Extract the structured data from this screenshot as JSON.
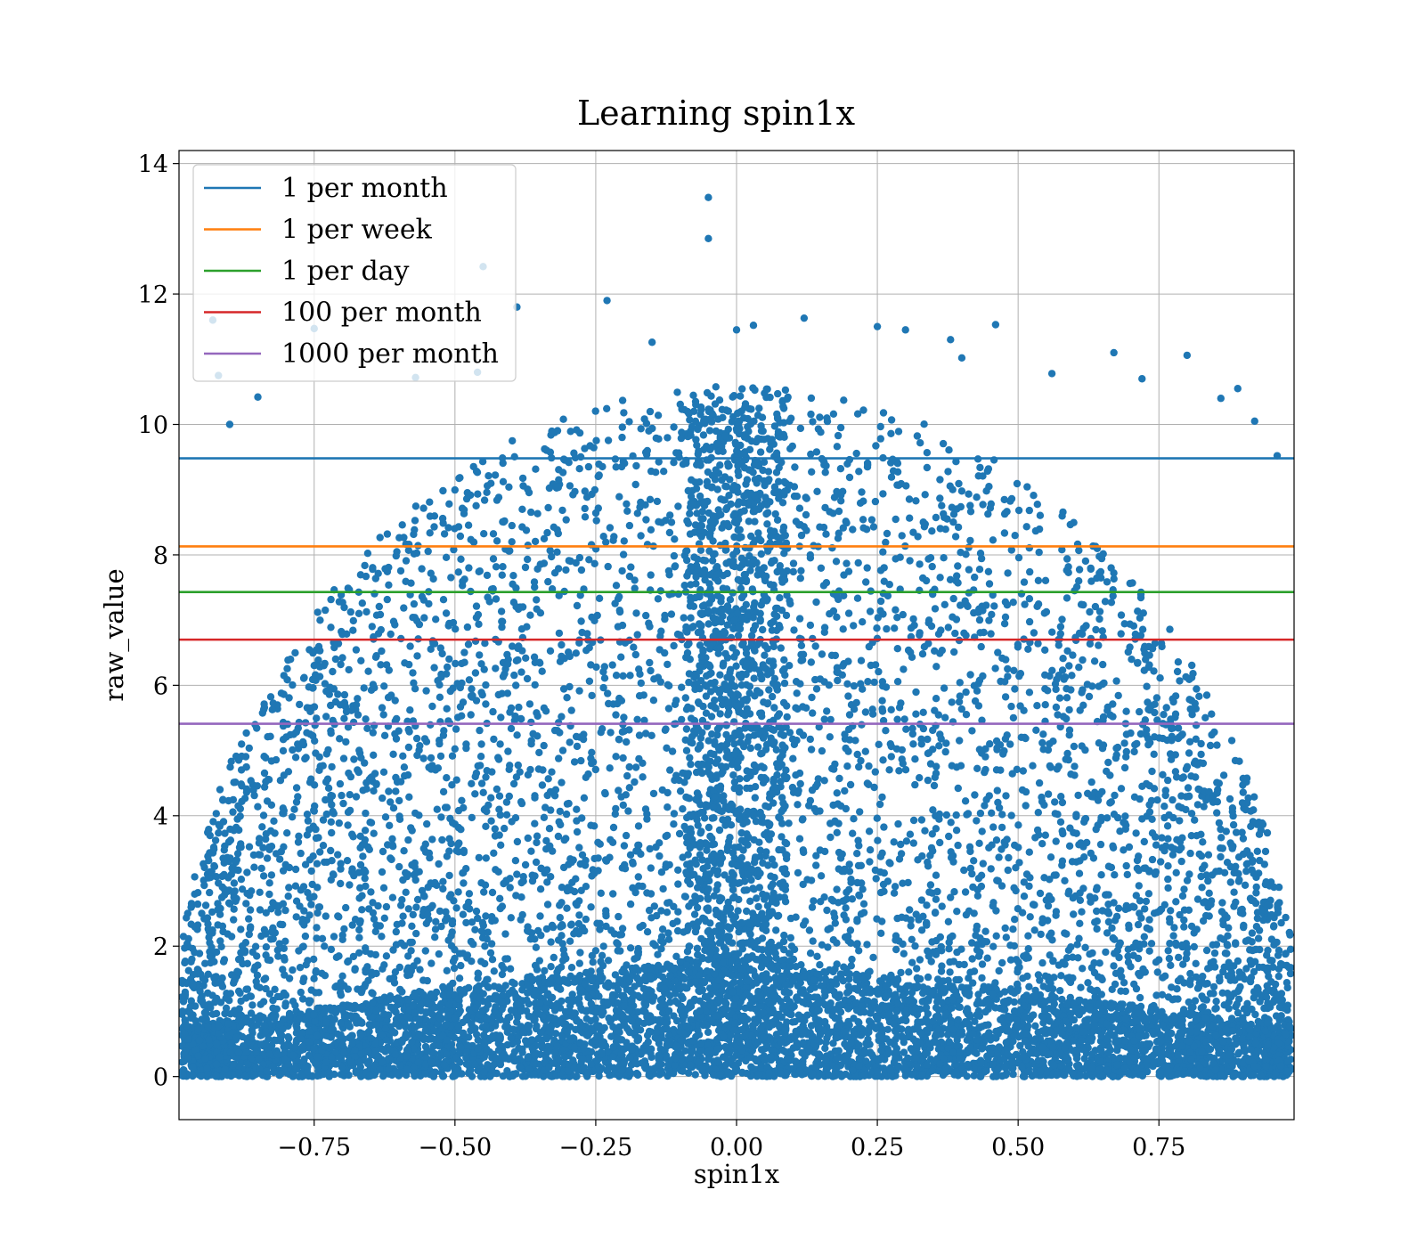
{
  "chart_data": {
    "type": "scatter",
    "title": "Learning spin1x",
    "xlabel": "spin1x",
    "ylabel": "raw_value",
    "xlim": [
      -0.99,
      0.99
    ],
    "ylim": [
      -0.66,
      14.2
    ],
    "xticks": [
      -0.75,
      -0.5,
      -0.25,
      0.0,
      0.25,
      0.5,
      0.75
    ],
    "xtick_labels": [
      "−0.75",
      "−0.50",
      "−0.25",
      "0.00",
      "0.25",
      "0.50",
      "0.75"
    ],
    "yticks": [
      0,
      2,
      4,
      6,
      8,
      10,
      12,
      14
    ],
    "ytick_labels": [
      "0",
      "2",
      "4",
      "6",
      "8",
      "10",
      "12",
      "14"
    ],
    "grid": true,
    "legend_position": "top-left",
    "scatter": {
      "color": "#1f77b4",
      "points": [
        [
          -0.05,
          13.48
        ],
        [
          -0.05,
          12.85
        ],
        [
          -0.45,
          12.42
        ],
        [
          -0.23,
          11.9
        ],
        [
          -0.39,
          11.8
        ],
        [
          -0.93,
          11.6
        ],
        [
          -0.75,
          11.47
        ],
        [
          0.12,
          11.63
        ],
        [
          0.46,
          11.53
        ],
        [
          0.0,
          11.45
        ],
        [
          0.25,
          11.5
        ],
        [
          0.3,
          11.45
        ],
        [
          0.03,
          11.52
        ],
        [
          -0.92,
          10.75
        ],
        [
          -0.57,
          10.72
        ],
        [
          -0.46,
          10.8
        ],
        [
          -0.9,
          10.0
        ],
        [
          -0.85,
          10.42
        ],
        [
          0.8,
          11.06
        ],
        [
          0.67,
          11.1
        ],
        [
          0.72,
          10.7
        ],
        [
          0.89,
          10.55
        ],
        [
          0.86,
          10.4
        ],
        [
          0.92,
          10.05
        ],
        [
          0.96,
          9.52
        ],
        [
          0.4,
          11.02
        ],
        [
          0.56,
          10.78
        ],
        [
          -0.15,
          11.26
        ],
        [
          0.38,
          11.3
        ]
      ]
    },
    "series": [
      {
        "name": "1 per month",
        "y": 9.48,
        "color": "#1f77b4"
      },
      {
        "name": "1 per week",
        "y": 8.13,
        "color": "#ff7f0e"
      },
      {
        "name": "1 per day",
        "y": 7.43,
        "color": "#2ca02c"
      },
      {
        "name": "100 per month",
        "y": 6.7,
        "color": "#d62728"
      },
      {
        "name": "1000 per month",
        "y": 5.41,
        "color": "#9467bd"
      }
    ]
  }
}
